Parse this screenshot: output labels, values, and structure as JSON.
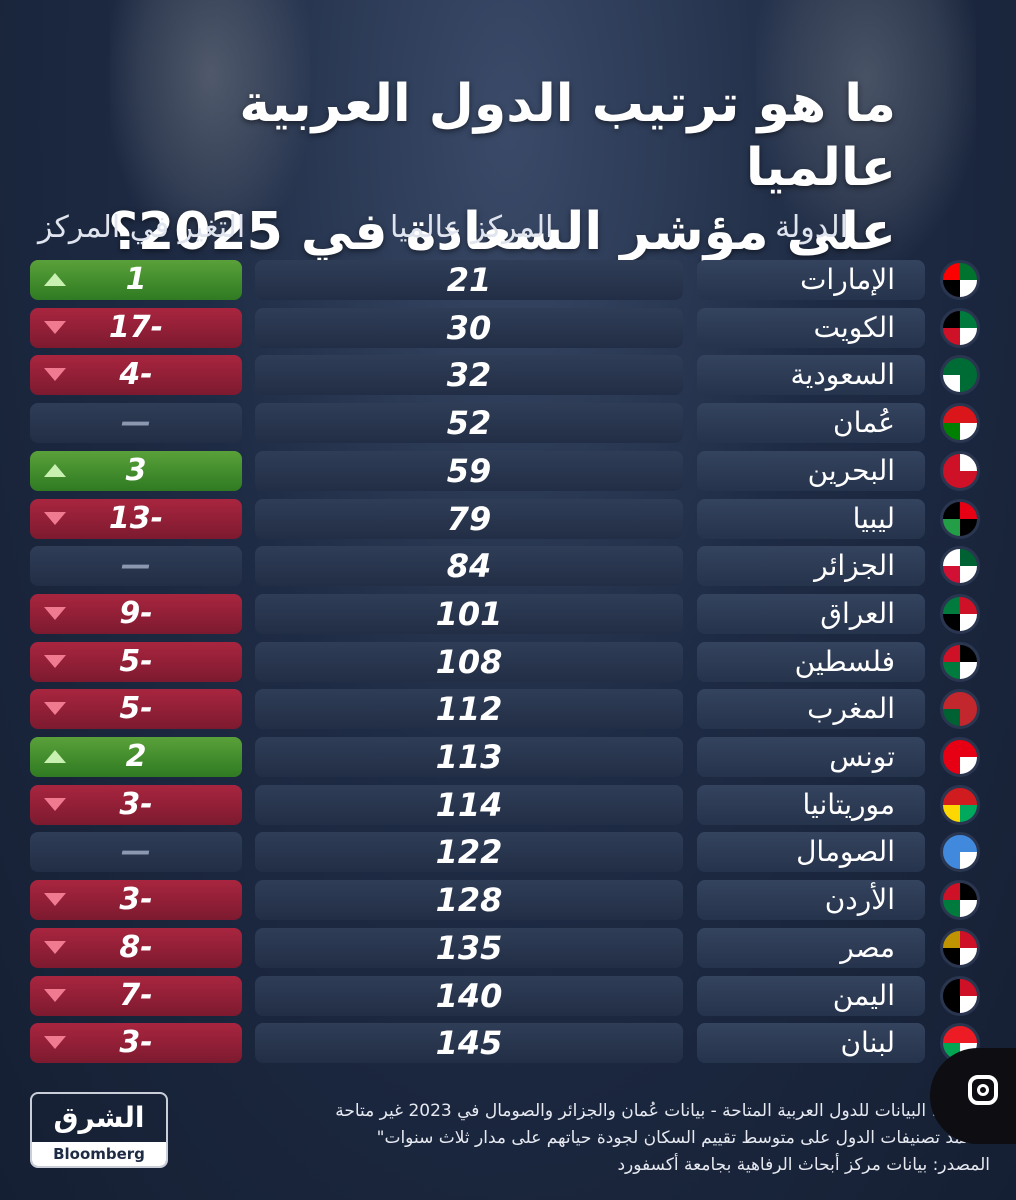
{
  "title": {
    "line1": "ما هو ترتيب الدول العربية عالميا",
    "line2": "على مؤشر السعادة في 2025؟"
  },
  "headers": {
    "country": "الدولة",
    "rank": "المركز عالميا",
    "change": "التغير في المركز"
  },
  "rows": [
    {
      "country": "الإمارات",
      "rank": "21",
      "change": "1",
      "trend": "up",
      "flag_colors": [
        "#00732f",
        "#ffffff",
        "#000000",
        "#ff0000"
      ]
    },
    {
      "country": "الكويت",
      "rank": "30",
      "change": "17-",
      "trend": "down",
      "flag_colors": [
        "#007a3d",
        "#ffffff",
        "#ce1126",
        "#000000"
      ]
    },
    {
      "country": "السعودية",
      "rank": "32",
      "change": "4-",
      "trend": "down",
      "flag_colors": [
        "#006c35",
        "#006c35",
        "#ffffff",
        "#006c35"
      ]
    },
    {
      "country": "عُمان",
      "rank": "52",
      "change": "—",
      "trend": "none",
      "flag_colors": [
        "#db161b",
        "#ffffff",
        "#008000",
        "#db161b"
      ]
    },
    {
      "country": "البحرين",
      "rank": "59",
      "change": "3",
      "trend": "up",
      "flag_colors": [
        "#ffffff",
        "#ce1126",
        "#ce1126",
        "#ce1126"
      ]
    },
    {
      "country": "ليبيا",
      "rank": "79",
      "change": "13-",
      "trend": "down",
      "flag_colors": [
        "#e70013",
        "#000000",
        "#239e46",
        "#000000"
      ]
    },
    {
      "country": "الجزائر",
      "rank": "84",
      "change": "—",
      "trend": "none",
      "flag_colors": [
        "#006233",
        "#ffffff",
        "#d21034",
        "#ffffff"
      ]
    },
    {
      "country": "العراق",
      "rank": "101",
      "change": "9-",
      "trend": "down",
      "flag_colors": [
        "#ce1126",
        "#ffffff",
        "#000000",
        "#007a3d"
      ]
    },
    {
      "country": "فلسطين",
      "rank": "108",
      "change": "5-",
      "trend": "down",
      "flag_colors": [
        "#000000",
        "#ffffff",
        "#007a3d",
        "#ce1126"
      ]
    },
    {
      "country": "المغرب",
      "rank": "112",
      "change": "5-",
      "trend": "down",
      "flag_colors": [
        "#c1272d",
        "#c1272d",
        "#006233",
        "#c1272d"
      ]
    },
    {
      "country": "تونس",
      "rank": "113",
      "change": "2",
      "trend": "up",
      "flag_colors": [
        "#e70013",
        "#ffffff",
        "#e70013",
        "#e70013"
      ]
    },
    {
      "country": "موريتانيا",
      "rank": "114",
      "change": "3-",
      "trend": "down",
      "flag_colors": [
        "#d01c1f",
        "#00a95c",
        "#ffd700",
        "#d01c1f"
      ]
    },
    {
      "country": "الصومال",
      "rank": "122",
      "change": "—",
      "trend": "none",
      "flag_colors": [
        "#4189dd",
        "#ffffff",
        "#4189dd",
        "#4189dd"
      ]
    },
    {
      "country": "الأردن",
      "rank": "128",
      "change": "3-",
      "trend": "down",
      "flag_colors": [
        "#000000",
        "#ffffff",
        "#007a3d",
        "#ce1126"
      ]
    },
    {
      "country": "مصر",
      "rank": "135",
      "change": "8-",
      "trend": "down",
      "flag_colors": [
        "#ce1126",
        "#ffffff",
        "#000000",
        "#c09300"
      ]
    },
    {
      "country": "اليمن",
      "rank": "140",
      "change": "7-",
      "trend": "down",
      "flag_colors": [
        "#ce1126",
        "#ffffff",
        "#000000",
        "#000000"
      ]
    },
    {
      "country": "لبنان",
      "rank": "145",
      "change": "3-",
      "trend": "down",
      "flag_colors": [
        "#ed1c24",
        "#ffffff",
        "#00a651",
        "#ed1c24"
      ]
    }
  ],
  "footer": {
    "note1": "ملاحظة: البيانات للدول العربية المتاحة - بيانات عُمان والجزائر والصومال في 2023 غير متاحة",
    "note2": "\"تعتمد تصنيفات الدول على متوسط تقييم السكان لجودة حياتهم على مدار ثلاث سنوات\"",
    "source": "المصدر: بيانات مركز أبحاث الرفاهية بجامعة أكسفورد"
  },
  "logo": {
    "main": "الشرق",
    "sub": "Bloomberg"
  },
  "colors": {
    "up": "#3f8c2c",
    "down": "#9a2139",
    "background": "#1e2b44"
  },
  "icons": {
    "lens": "google-lens-icon"
  }
}
